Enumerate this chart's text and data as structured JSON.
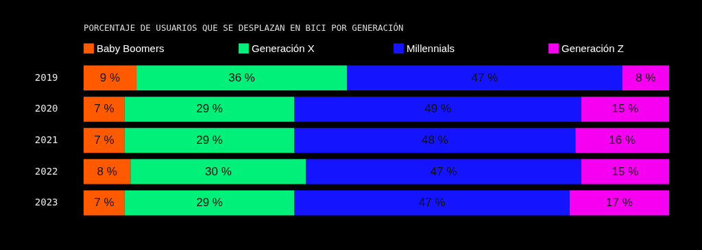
{
  "chart_data": {
    "type": "bar",
    "orientation": "horizontal",
    "stacked": true,
    "title": "PORCENTAJE DE USUARIOS QUE SE DESPLAZAN EN BICI POR GENERACIÓN",
    "categories": [
      "2019",
      "2020",
      "2021",
      "2022",
      "2023"
    ],
    "legend": "top",
    "tick_labels": "y",
    "series": [
      {
        "name": "Baby Boomers",
        "color": "#ff5a00",
        "values": [
          9,
          7,
          7,
          8,
          7
        ],
        "value_labels": [
          "9 %",
          "7 %",
          "7 %",
          "8 %",
          "7 %"
        ]
      },
      {
        "name": "Generación X",
        "color": "#00f07a",
        "values": [
          36,
          29,
          29,
          30,
          29
        ],
        "value_labels": [
          "36 %",
          "29 %",
          "29 %",
          "30 %",
          "29 %"
        ]
      },
      {
        "name": "Millennials",
        "color": "#1414ff",
        "values": [
          47,
          49,
          48,
          47,
          47
        ],
        "value_labels": [
          "47 %",
          "49 %",
          "48 %",
          "47 %",
          "47 %"
        ]
      },
      {
        "name": "Generación Z",
        "color": "#f500f0",
        "values": [
          8,
          15,
          16,
          15,
          17
        ],
        "value_labels": [
          "8 %",
          "15 %",
          "16 %",
          "15 %",
          "17 %"
        ]
      }
    ]
  }
}
